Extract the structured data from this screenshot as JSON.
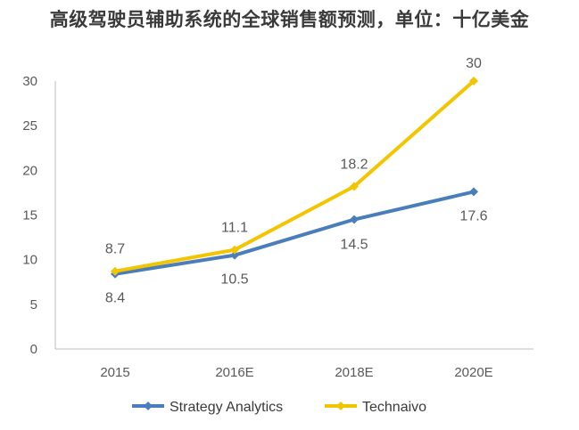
{
  "chart_data": {
    "type": "line",
    "title": "高级驾驶员辅助系统的全球销售额预测，单位：十亿美金",
    "categories": [
      "2015",
      "2016E",
      "2018E",
      "2020E"
    ],
    "ylim": [
      0,
      30
    ],
    "yticks": [
      "0",
      "5",
      "10",
      "15",
      "20",
      "25",
      "30"
    ],
    "grid": false,
    "legend": "bottom-center",
    "series": [
      {
        "name": "Strategy Analytics",
        "values": [
          8.4,
          10.5,
          14.5,
          17.6
        ],
        "labels": [
          "8.4",
          "10.5",
          "14.5",
          "17.6"
        ],
        "color": "#4a7ebb"
      },
      {
        "name": "Technaivo",
        "values": [
          8.7,
          11.1,
          18.2,
          30
        ],
        "labels": [
          "8.7",
          "11.1",
          "18.2",
          "30"
        ],
        "color": "#f2c500"
      }
    ]
  }
}
